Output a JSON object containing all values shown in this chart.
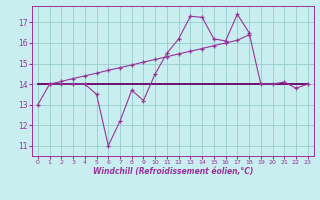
{
  "xlabel": "Windchill (Refroidissement éolien,°C)",
  "bg_color": "#c8eef0",
  "grid_color": "#99cccc",
  "line_color": "#993399",
  "line_color2": "#660066",
  "x": [
    0,
    1,
    2,
    3,
    4,
    5,
    6,
    7,
    8,
    9,
    10,
    11,
    12,
    13,
    14,
    15,
    16,
    17,
    18,
    19,
    20,
    21,
    22,
    23
  ],
  "line1_y": [
    13.0,
    14.0,
    14.0,
    14.0,
    14.0,
    13.5,
    11.0,
    12.2,
    13.7,
    13.2,
    14.5,
    15.5,
    16.2,
    17.3,
    17.25,
    16.2,
    16.1,
    17.4,
    16.5,
    14.0,
    14.0,
    14.1,
    13.8,
    14.0
  ],
  "line2_x": [
    1,
    2,
    3,
    4,
    5,
    6,
    7,
    8,
    9,
    10,
    11,
    12,
    13,
    14,
    15,
    16,
    17,
    18
  ],
  "line2_y": [
    14.0,
    14.13,
    14.27,
    14.4,
    14.53,
    14.67,
    14.8,
    14.93,
    15.07,
    15.2,
    15.33,
    15.47,
    15.6,
    15.73,
    15.87,
    16.0,
    16.13,
    16.4
  ],
  "line3_x": [
    0,
    23
  ],
  "line3_y": [
    14.0,
    14.0
  ],
  "xticks": [
    0,
    1,
    2,
    3,
    4,
    5,
    6,
    7,
    8,
    9,
    10,
    11,
    12,
    13,
    14,
    15,
    16,
    17,
    18,
    19,
    20,
    21,
    22,
    23
  ],
  "yticks": [
    11,
    12,
    13,
    14,
    15,
    16,
    17
  ],
  "ylim": [
    10.5,
    17.8
  ],
  "xlim": [
    -0.5,
    23.5
  ]
}
